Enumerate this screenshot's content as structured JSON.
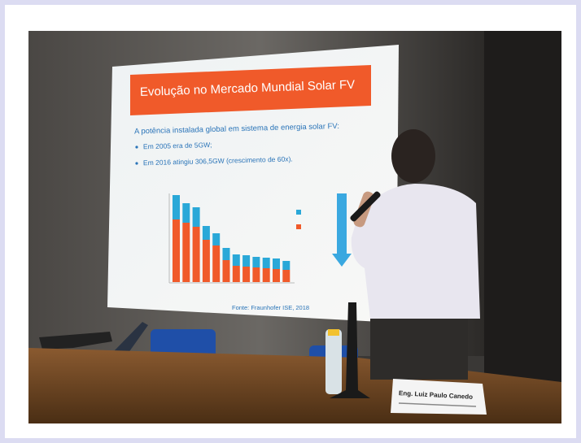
{
  "slide": {
    "title": "Evolução no Mercado Mundial Solar FV",
    "intro": "A potência instalada global em sistema de energia solar FV:",
    "bullets": [
      "Em 2005 era de 5GW;",
      "Em 2016 atingiu 306,5GW (crescimento de 60x)."
    ],
    "source": "Fonte: Fraunhofer ISE, 2018"
  },
  "nameplate": {
    "name": "Eng. Luiz Paulo Canedo"
  }
}
